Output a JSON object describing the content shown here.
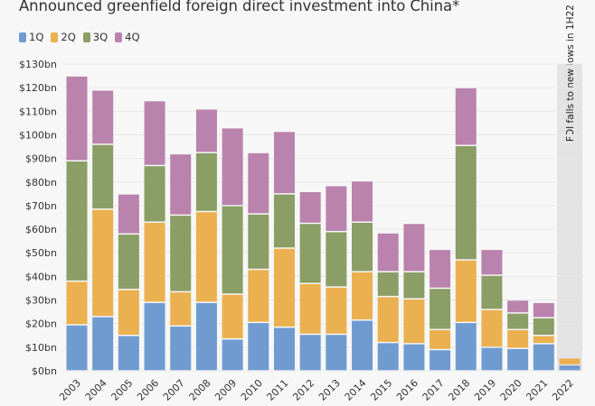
{
  "chart_data": {
    "type": "bar",
    "stacked": true,
    "title": "Announced greenfield foreign direct investment into China*",
    "xlabel": "",
    "ylabel": "",
    "ylim": [
      0,
      130
    ],
    "grid": true,
    "legend_placement": "top-left",
    "yticks": [
      "$0bn",
      "$10bn",
      "$20bn",
      "$30bn",
      "$40bn",
      "$50bn",
      "$60bn",
      "$70bn",
      "$80bn",
      "$90bn",
      "$100bn",
      "$110bn",
      "$120bn",
      "$130bn"
    ],
    "categories": [
      "2003",
      "2004",
      "2005",
      "2006",
      "2007",
      "2008",
      "2009",
      "2010",
      "2011",
      "2012",
      "2013",
      "2014",
      "2015",
      "2016",
      "2017",
      "2018",
      "2019",
      "2020",
      "2021",
      "2022"
    ],
    "series": [
      {
        "name": "1Q",
        "color": "#6f9bd1",
        "values": [
          19.5,
          23,
          15,
          29,
          19,
          29,
          13.5,
          20.5,
          18.5,
          15.5,
          15.5,
          21.5,
          12,
          11.5,
          9,
          20.5,
          10,
          9.5,
          11.5,
          2.5
        ]
      },
      {
        "name": "2Q",
        "color": "#ebb04f",
        "values": [
          18.5,
          45.5,
          19.5,
          34,
          14.5,
          38.5,
          19,
          22.5,
          33.5,
          21.5,
          20,
          20.5,
          19.5,
          19,
          8.5,
          26.5,
          16,
          8,
          3.5,
          3
        ]
      },
      {
        "name": "3Q",
        "color": "#8a9e65",
        "values": [
          51,
          27.5,
          23.5,
          24,
          32.5,
          25,
          37.5,
          23.5,
          23,
          25.5,
          23.5,
          21,
          10.5,
          11.5,
          17.5,
          48.5,
          14.5,
          7,
          7.5,
          null
        ]
      },
      {
        "name": "4Q",
        "color": "#b983ad",
        "values": [
          36,
          23,
          17,
          27.5,
          26,
          18.5,
          33,
          26,
          26.5,
          13.5,
          19.5,
          17.5,
          16.5,
          20.5,
          16.5,
          24.5,
          11,
          5.5,
          6.5,
          null
        ]
      }
    ],
    "annotation": {
      "text": "FDI falls to new lows in 1H22",
      "category": "2022"
    }
  }
}
